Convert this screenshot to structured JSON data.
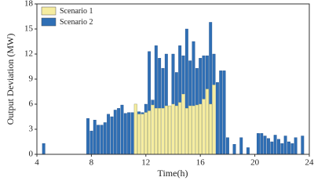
{
  "chart_data": {
    "type": "bar",
    "xlabel": "Time(h)",
    "ylabel": "Output Deviation (MW)",
    "x": [
      4.5,
      7.75,
      8,
      8.25,
      8.5,
      8.75,
      9,
      9.25,
      9.5,
      9.75,
      10,
      10.25,
      10.5,
      10.75,
      11,
      11.25,
      11.5,
      11.75,
      12,
      12.25,
      12.5,
      12.75,
      13,
      13.25,
      13.5,
      13.75,
      14,
      14.25,
      14.5,
      14.75,
      15,
      15.25,
      15.5,
      15.75,
      16,
      16.25,
      16.5,
      16.75,
      17,
      17.25,
      17.5,
      17.75,
      18,
      18.5,
      19,
      19.5,
      20.25,
      20.5,
      20.75,
      21,
      21.25,
      21.5,
      21.75,
      22,
      22.25,
      22.5,
      22.75,
      23,
      23.5
    ],
    "series": [
      {
        "name": "Scenario 2",
        "color": "#2f6fb5",
        "values": [
          1.3,
          4.3,
          2.8,
          4.1,
          3.5,
          3.5,
          3.8,
          4.8,
          4.5,
          5.3,
          5.5,
          5.9,
          4.9,
          5.0,
          5.0,
          6.0,
          5.1,
          5.0,
          6.0,
          12.3,
          6.5,
          13.0,
          11.5,
          10.3,
          12.0,
          5.8,
          12.0,
          9.8,
          13.0,
          11.8,
          15.0,
          11.2,
          13.5,
          10.3,
          11.5,
          11.8,
          11.8,
          15.8,
          12.0,
          8.6,
          10.0,
          10.0,
          2.0,
          1.2,
          2.0,
          0.8,
          2.5,
          2.5,
          2.2,
          1.9,
          1.5,
          2.3,
          1.8,
          1.3,
          2.2,
          1.5,
          1.3,
          2.0,
          2.2
        ]
      },
      {
        "name": "Scenario 1",
        "color": "#f6eda0",
        "values": [
          null,
          null,
          null,
          null,
          null,
          null,
          null,
          null,
          null,
          null,
          null,
          null,
          null,
          null,
          null,
          6.0,
          4.8,
          4.8,
          5.0,
          5.2,
          5.9,
          5.5,
          5.5,
          5.5,
          5.8,
          5.8,
          6.0,
          5.8,
          6.2,
          7.2,
          5.5,
          5.8,
          5.8,
          5.9,
          6.0,
          6.6,
          7.8,
          6.0,
          8.3,
          null,
          null,
          null,
          null,
          null,
          null,
          null,
          null,
          null,
          null,
          null,
          null,
          null,
          null,
          null,
          null,
          null,
          null,
          null,
          null
        ]
      }
    ],
    "xlim": [
      4,
      24
    ],
    "xticks": [
      4,
      8,
      12,
      16,
      20,
      24
    ],
    "ylim": [
      0,
      18
    ],
    "yticks": [
      0,
      3,
      6,
      9,
      12,
      15,
      18
    ],
    "legend": "upper left"
  }
}
